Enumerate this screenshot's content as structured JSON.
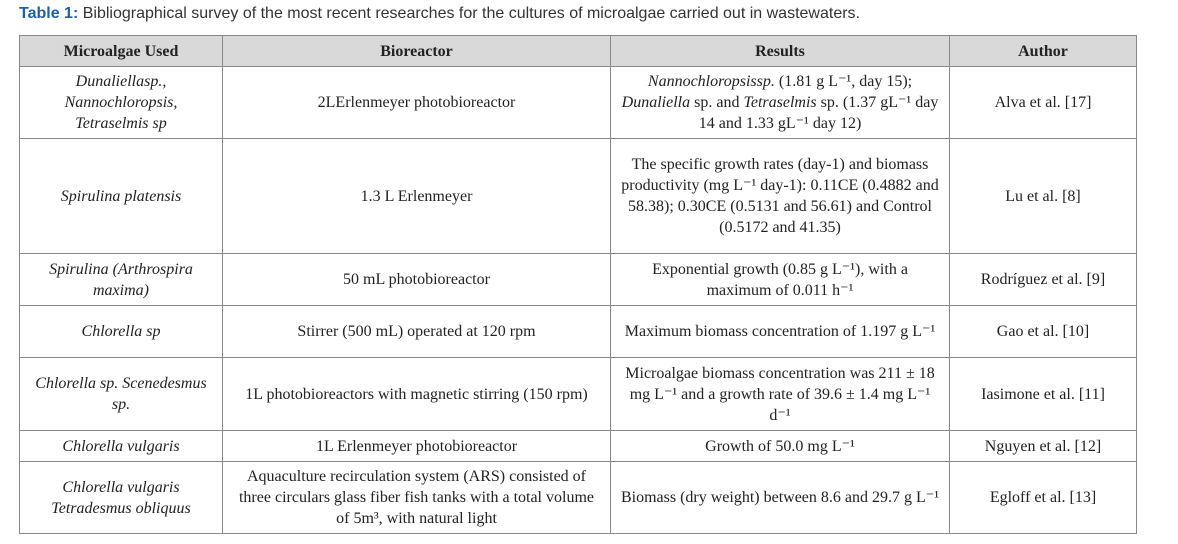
{
  "caption": {
    "label": "Table 1:",
    "text": "Bibliographical survey of the most recent researches for the cultures of microalgae carried out in wastewaters."
  },
  "table": {
    "headers": [
      "Microalgae Used",
      "Bioreactor",
      "Results",
      "Author"
    ],
    "rows": [
      [
        "Dunaliellasp., Nannochloropsis, Tetraselmis sp",
        "2LErlenmeyer photobioreactor",
        [
          {
            "text": "Nannochloropsissp.",
            "italic": true
          },
          {
            "text": " (1.81 g L⁻¹, day 15); ",
            "italic": false
          },
          {
            "text": "Dunaliella",
            "italic": true
          },
          {
            "text": " sp. and ",
            "italic": false
          },
          {
            "text": "Tetraselmis",
            "italic": true
          },
          {
            "text": " sp. (1.37 gL⁻¹ day 14 and 1.33 gL⁻¹ day 12)",
            "italic": false
          }
        ],
        "Alva et al. [17]"
      ],
      [
        "Spirulina platensis",
        "1.3 L Erlenmeyer",
        "The specific growth rates (day-1) and biomass productivity (mg L⁻¹ day-1): 0.11CE (0.4882 and 58.38); 0.30CE (0.5131 and 56.61) and Control (0.5172 and 41.35)",
        "Lu et al. [8]"
      ],
      [
        "Spirulina (Arthrospira maxima)",
        "50 mL photobioreactor",
        "Exponential growth (0.85 g L⁻¹), with a maximum of 0.011 h⁻¹",
        "Rodríguez et al. [9]"
      ],
      [
        "Chlorella sp",
        "Stirrer (500 mL) operated at 120 rpm",
        "Maximum biomass concentration of 1.197 g L⁻¹",
        "Gao et al. [10]"
      ],
      [
        "Chlorella sp. Scenedesmus sp.",
        "1L photobioreactors with magnetic  stirring (150 rpm)",
        "Microalgae biomass concentration was 211 ± 18 mg L⁻¹ and a growth rate of 39.6 ± 1.4 mg L⁻¹ d⁻¹",
        "Iasimone et al. [11]"
      ],
      [
        "Chlorella vulgaris",
        "1L Erlenmeyer photobioreactor",
        "Growth of 50.0 mg L⁻¹",
        "Nguyen et al. [12]"
      ],
      [
        "Chlorella vulgaris Tetradesmus obliquus",
        "Aquaculture recirculation system (ARS) consisted of three circulars  glass fiber fish tanks with a total volume of 5m³, with natural light",
        "Biomass (dry weight) between 8.6 and 29.7 g L⁻¹",
        "Egloff et al. [13]"
      ]
    ]
  }
}
